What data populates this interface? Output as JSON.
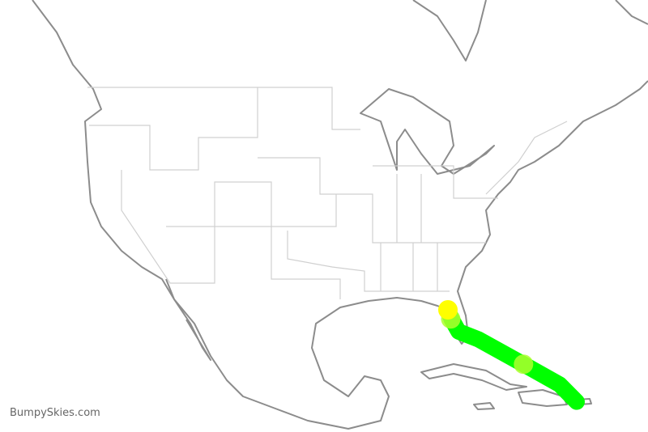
{
  "watermark": "BumpySkies.com",
  "route": {
    "color": "#00ff00",
    "points": [
      {
        "lat": 27.95,
        "lon": -82.46
      },
      {
        "lat": 27.0,
        "lon": -82.0
      },
      {
        "lat": 25.7,
        "lon": -81.1
      },
      {
        "lat": 24.9,
        "lon": -78.6
      },
      {
        "lat": 22.3,
        "lon": -72.8
      },
      {
        "lat": 20.2,
        "lon": -68.2
      },
      {
        "lat": 18.4,
        "lon": -66.0
      }
    ],
    "markers": [
      {
        "lat": 27.95,
        "lon": -82.46,
        "color": "#ffff00"
      },
      {
        "lat": 27.0,
        "lon": -82.1,
        "color": "#adff2f"
      },
      {
        "lat": 22.3,
        "lon": -72.8,
        "color": "#adff2f"
      }
    ]
  }
}
